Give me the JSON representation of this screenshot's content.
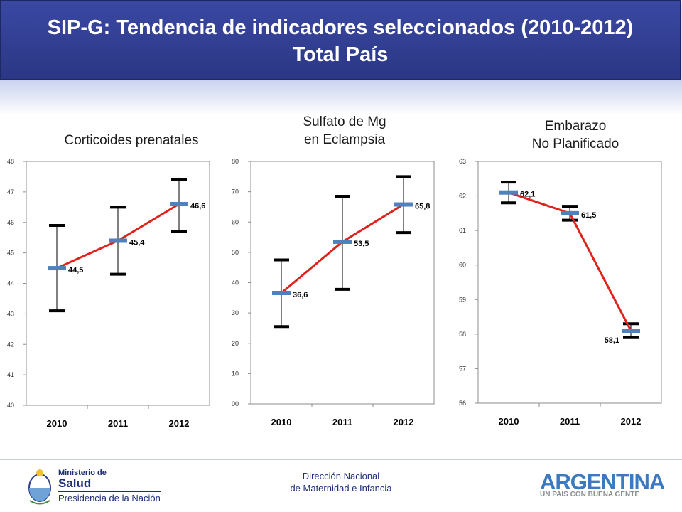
{
  "header": {
    "title_line1": "SIP-G: Tendencia de indicadores seleccionados (2010-2012)",
    "title_line2": "Total País"
  },
  "chart_data": [
    {
      "type": "line",
      "title": "Corticoides prenatales",
      "title_lines": [
        "Corticoides prenatales"
      ],
      "categories": [
        "2010",
        "2011",
        "2012"
      ],
      "values": [
        44.5,
        45.4,
        46.6
      ],
      "value_labels": [
        "44,5",
        "45,4",
        "46,6"
      ],
      "error_low": [
        43.1,
        44.3,
        45.7
      ],
      "error_high": [
        45.9,
        46.5,
        47.4
      ],
      "ylim": [
        40,
        48
      ],
      "yticks": [
        40,
        41,
        42,
        43,
        44,
        45,
        46,
        47,
        48
      ],
      "ytick_labels": [
        "40",
        "41",
        "42",
        "43",
        "44",
        "45",
        "46",
        "47",
        "48"
      ],
      "label_side": [
        "right",
        "right",
        "right"
      ],
      "xlabel": "",
      "ylabel": ""
    },
    {
      "type": "line",
      "title": "Sulfato de Mg en Eclampsia",
      "title_lines": [
        "Sulfato de Mg",
        "en Eclampsia"
      ],
      "categories": [
        "2010",
        "2011",
        "2012"
      ],
      "values": [
        36.6,
        53.5,
        65.8
      ],
      "value_labels": [
        "36,6",
        "53,5",
        "65,8"
      ],
      "error_low": [
        25.5,
        37.8,
        56.5
      ],
      "error_high": [
        47.5,
        68.5,
        75.0
      ],
      "ylim": [
        0,
        80
      ],
      "yticks": [
        0,
        10,
        20,
        30,
        40,
        50,
        60,
        70,
        80
      ],
      "ytick_labels": [
        "00",
        "10",
        "20",
        "30",
        "40",
        "50",
        "60",
        "70",
        "80"
      ],
      "label_side": [
        "right",
        "right",
        "right"
      ],
      "xlabel": "",
      "ylabel": ""
    },
    {
      "type": "line",
      "title": "Embarazo No Planificado",
      "title_lines": [
        "Embarazo",
        "No Planificado"
      ],
      "categories": [
        "2010",
        "2011",
        "2012"
      ],
      "values": [
        62.1,
        61.5,
        58.1
      ],
      "value_labels": [
        "62,1",
        "61,5",
        "58,1"
      ],
      "error_low": [
        61.8,
        61.3,
        57.9
      ],
      "error_high": [
        62.4,
        61.7,
        58.3
      ],
      "ylim": [
        56,
        63
      ],
      "yticks": [
        56,
        57,
        58,
        59,
        60,
        61,
        62,
        63
      ],
      "ytick_labels": [
        "56",
        "57",
        "58",
        "59",
        "60",
        "61",
        "62",
        "63"
      ],
      "label_side": [
        "right",
        "right",
        "left"
      ],
      "xlabel": "",
      "ylabel": ""
    }
  ],
  "colors": {
    "line": "#e0221b",
    "marker": "#4f81bd",
    "error_bar": "#000000",
    "header_bg": "#2e3a8c"
  },
  "footer": {
    "center_line1": "Dirección Nacional",
    "center_line2": "de Maternidad e Infancia",
    "ministry_line1": "Ministerio de",
    "ministry_line2": "Salud",
    "ministry_line3": "Presidencia de la Nación",
    "brand_name": "ARGENTINA",
    "brand_tagline": "UN PAIS CON BUENA GENTE"
  }
}
